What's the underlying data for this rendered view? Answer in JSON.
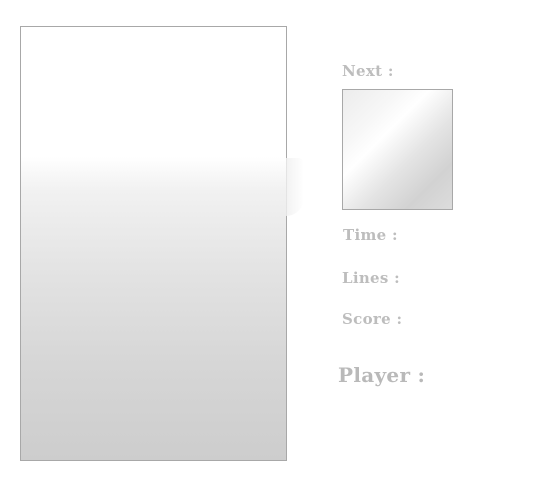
{
  "sidebar": {
    "next_label": "Next :",
    "time_label": "Time :",
    "lines_label": "Lines :",
    "score_label": "Score :",
    "player_label": "Player :"
  }
}
